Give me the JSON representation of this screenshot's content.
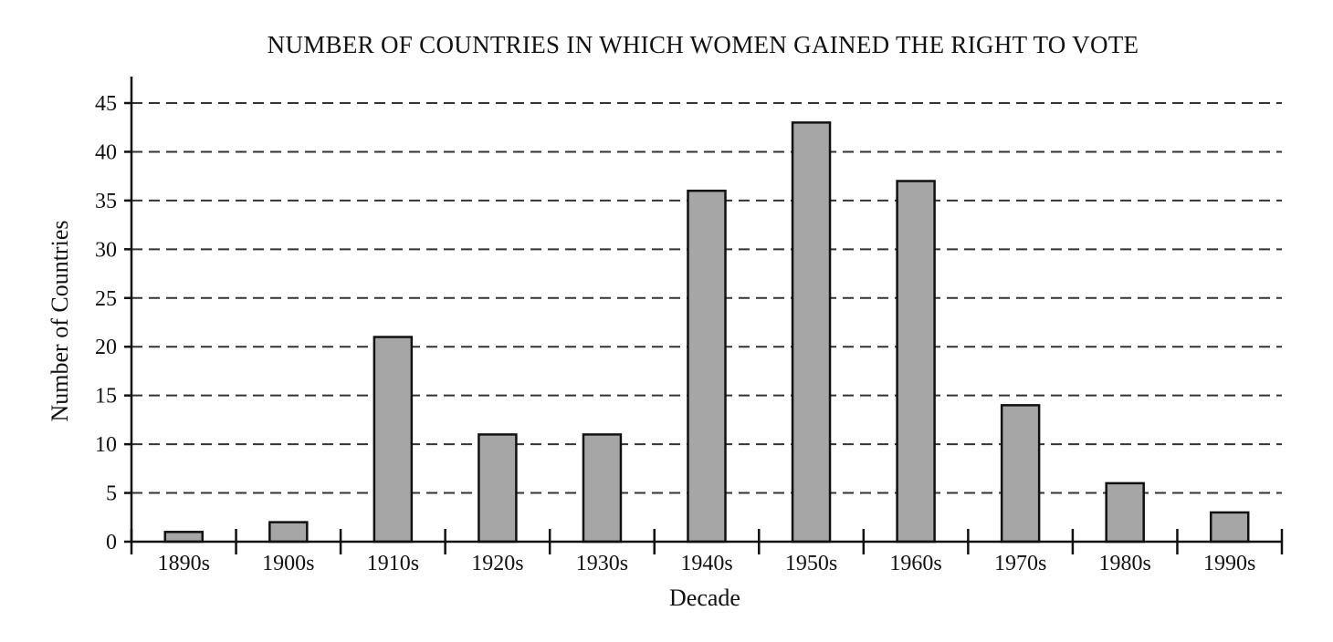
{
  "chart_data": {
    "type": "bar",
    "title": "NUMBER OF COUNTRIES IN WHICH WOMEN GAINED THE RIGHT TO VOTE",
    "xlabel": "Decade",
    "ylabel": "Number of Countries",
    "categories": [
      "1890s",
      "1900s",
      "1910s",
      "1920s",
      "1930s",
      "1940s",
      "1950s",
      "1960s",
      "1970s",
      "1980s",
      "1990s"
    ],
    "values": [
      1,
      2,
      21,
      11,
      11,
      36,
      43,
      37,
      14,
      6,
      3
    ],
    "ylim": [
      0,
      45
    ],
    "yticks": [
      0,
      5,
      10,
      15,
      20,
      25,
      30,
      35,
      40,
      45
    ],
    "grid": true,
    "colors": {
      "bar_fill": "#a6a6a6",
      "bar_stroke": "#111111"
    }
  }
}
